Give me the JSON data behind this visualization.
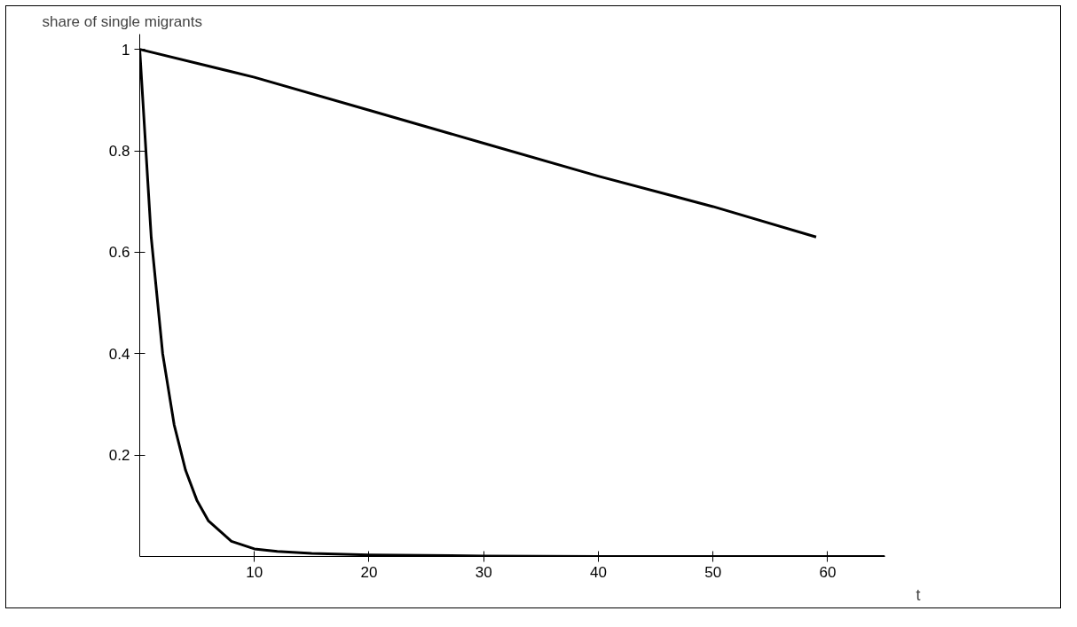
{
  "chart_data": {
    "type": "line",
    "ylabel": "share of single migrants",
    "xlabel": "t",
    "xlim": [
      0,
      65
    ],
    "ylim": [
      0,
      1.03
    ],
    "xticks": [
      10,
      20,
      30,
      40,
      50,
      60
    ],
    "yticks": [
      0.2,
      0.4,
      0.6,
      0.8,
      1
    ],
    "grid": false,
    "marker": "none",
    "line_style": "solid",
    "series": [
      {
        "color": "#000000",
        "x": [
          0,
          10,
          20,
          30,
          40,
          50,
          59
        ],
        "values": [
          1,
          0.945,
          0.88,
          0.815,
          0.75,
          0.69,
          0.63
        ]
      },
      {
        "color": "#000000",
        "x": [
          0,
          1,
          2,
          3,
          4,
          5,
          6,
          8,
          10,
          12,
          15,
          20,
          30,
          40,
          50,
          60,
          65
        ],
        "values": [
          1,
          0.63,
          0.4,
          0.26,
          0.17,
          0.11,
          0.07,
          0.03,
          0.015,
          0.01,
          0.006,
          0.003,
          0.001,
          0,
          0,
          0,
          0
        ]
      }
    ]
  }
}
